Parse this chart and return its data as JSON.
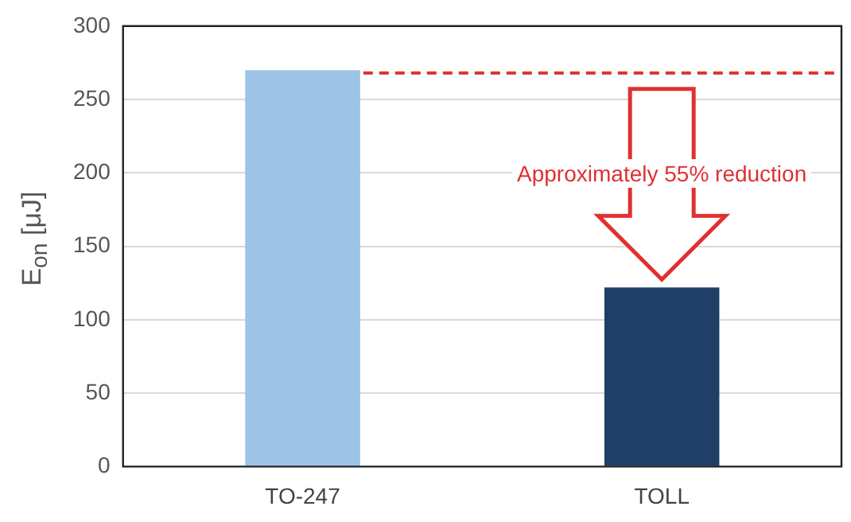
{
  "chart_data": {
    "type": "bar",
    "ylabel": "E$_{on}$ [μJ]",
    "categories": [
      "TO-247",
      "TOLL"
    ],
    "values": [
      270,
      122
    ],
    "colors": [
      "#9dc3e6",
      "#1f3f66"
    ],
    "ylim": [
      0,
      300
    ],
    "yticks": [
      0,
      50,
      100,
      150,
      200,
      250,
      300
    ],
    "grid": "y",
    "legend": false,
    "ref_lines": [
      {
        "axis": "y",
        "value": 268,
        "color": "#e03030",
        "line_style": "dashed"
      }
    ],
    "annotations": [
      "Approximately 55% reduction"
    ]
  }
}
